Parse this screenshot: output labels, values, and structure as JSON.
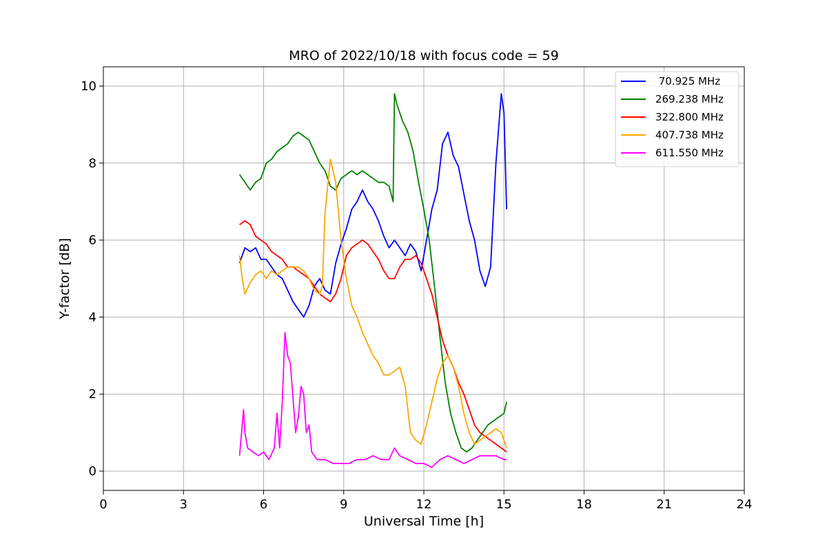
{
  "chart_data": {
    "type": "line",
    "title": "MRO of 2022/10/18 with focus code = 59",
    "xlabel": "Universal Time [h]",
    "ylabel": "Y-factor [dB]",
    "xlim": [
      0,
      24
    ],
    "ylim": [
      -0.5,
      10.5
    ],
    "xticks": [
      0,
      3,
      6,
      9,
      12,
      15,
      18,
      21,
      24
    ],
    "yticks": [
      0,
      2,
      4,
      6,
      8,
      10
    ],
    "grid": true,
    "legend_position": "top-right",
    "series": [
      {
        "name": " 70.925 MHz",
        "color": "#0000ff",
        "x": [
          5.1,
          5.2,
          5.3,
          5.5,
          5.7,
          5.9,
          6.1,
          6.3,
          6.5,
          6.7,
          6.9,
          7.1,
          7.3,
          7.5,
          7.7,
          7.9,
          8.1,
          8.3,
          8.5,
          8.7,
          8.9,
          9.1,
          9.3,
          9.5,
          9.7,
          9.9,
          10.1,
          10.3,
          10.5,
          10.7,
          10.9,
          11.1,
          11.3,
          11.5,
          11.7,
          11.9,
          12.1,
          12.3,
          12.5,
          12.7,
          12.9,
          13.1,
          13.3,
          13.5,
          13.7,
          13.9,
          14.1,
          14.3,
          14.5,
          14.7,
          14.9,
          15.0,
          15.1
        ],
        "y": [
          5.4,
          5.6,
          5.8,
          5.7,
          5.8,
          5.5,
          5.5,
          5.3,
          5.1,
          5.0,
          4.7,
          4.4,
          4.2,
          4.0,
          4.3,
          4.8,
          5.0,
          4.7,
          4.6,
          5.4,
          5.9,
          6.3,
          6.8,
          7.0,
          7.3,
          7.0,
          6.8,
          6.5,
          6.1,
          5.8,
          6.0,
          5.8,
          5.6,
          5.9,
          5.7,
          5.2,
          6.0,
          6.8,
          7.3,
          8.5,
          8.8,
          8.2,
          7.9,
          7.2,
          6.5,
          6.0,
          5.2,
          4.8,
          5.3,
          8.0,
          9.8,
          9.3,
          6.8
        ]
      },
      {
        "name": "269.238 MHz",
        "color": "#008000",
        "x": [
          5.1,
          5.3,
          5.5,
          5.7,
          5.9,
          6.1,
          6.3,
          6.5,
          6.7,
          6.9,
          7.1,
          7.3,
          7.5,
          7.7,
          7.9,
          8.1,
          8.3,
          8.5,
          8.7,
          8.9,
          9.1,
          9.3,
          9.5,
          9.7,
          9.9,
          10.1,
          10.3,
          10.5,
          10.7,
          10.85,
          10.9,
          11.0,
          11.2,
          11.4,
          11.6,
          11.8,
          12.0,
          12.2,
          12.4,
          12.6,
          12.8,
          13.0,
          13.2,
          13.4,
          13.6,
          13.8,
          14.0,
          14.2,
          14.4,
          14.6,
          14.8,
          15.0,
          15.1
        ],
        "y": [
          7.7,
          7.5,
          7.3,
          7.5,
          7.6,
          8.0,
          8.1,
          8.3,
          8.4,
          8.5,
          8.7,
          8.8,
          8.7,
          8.6,
          8.3,
          8.0,
          7.8,
          7.4,
          7.3,
          7.6,
          7.7,
          7.8,
          7.7,
          7.8,
          7.7,
          7.6,
          7.5,
          7.5,
          7.4,
          7.0,
          9.8,
          9.5,
          9.1,
          8.8,
          8.3,
          7.5,
          6.8,
          6.0,
          4.8,
          3.5,
          2.3,
          1.5,
          1.0,
          0.6,
          0.5,
          0.6,
          0.8,
          1.0,
          1.2,
          1.3,
          1.4,
          1.5,
          1.8
        ]
      },
      {
        "name": "322.800 MHz",
        "color": "#ff0000",
        "x": [
          5.1,
          5.3,
          5.5,
          5.7,
          5.9,
          6.1,
          6.3,
          6.5,
          6.7,
          6.9,
          7.1,
          7.3,
          7.5,
          7.7,
          7.9,
          8.1,
          8.3,
          8.5,
          8.7,
          8.9,
          9.1,
          9.3,
          9.5,
          9.7,
          9.9,
          10.1,
          10.3,
          10.5,
          10.7,
          10.9,
          11.1,
          11.3,
          11.5,
          11.7,
          11.9,
          12.1,
          12.3,
          12.5,
          12.7,
          12.9,
          13.1,
          13.3,
          13.5,
          13.7,
          13.9,
          14.1,
          14.3,
          14.5,
          14.7,
          14.9,
          15.1
        ],
        "y": [
          6.4,
          6.5,
          6.4,
          6.1,
          6.0,
          5.9,
          5.7,
          5.6,
          5.5,
          5.3,
          5.3,
          5.2,
          5.1,
          5.0,
          4.8,
          4.6,
          4.5,
          4.4,
          4.6,
          5.0,
          5.6,
          5.8,
          5.9,
          6.0,
          5.9,
          5.7,
          5.5,
          5.2,
          5.0,
          5.0,
          5.3,
          5.5,
          5.5,
          5.6,
          5.4,
          5.0,
          4.6,
          4.0,
          3.4,
          3.0,
          2.7,
          2.3,
          2.0,
          1.6,
          1.2,
          1.0,
          0.9,
          0.8,
          0.7,
          0.6,
          0.5
        ]
      },
      {
        "name": "407.738 MHz",
        "color": "#ffa500",
        "x": [
          5.1,
          5.2,
          5.3,
          5.5,
          5.7,
          5.9,
          6.1,
          6.3,
          6.5,
          6.7,
          6.9,
          7.1,
          7.3,
          7.5,
          7.7,
          7.9,
          8.1,
          8.2,
          8.3,
          8.5,
          8.7,
          8.9,
          9.1,
          9.3,
          9.5,
          9.7,
          9.9,
          10.1,
          10.3,
          10.5,
          10.7,
          10.9,
          11.1,
          11.3,
          11.5,
          11.7,
          11.9,
          12.1,
          12.3,
          12.5,
          12.7,
          12.9,
          13.1,
          13.3,
          13.5,
          13.7,
          13.9,
          14.1,
          14.3,
          14.5,
          14.7,
          14.9,
          15.1
        ],
        "y": [
          5.6,
          5.0,
          4.6,
          4.9,
          5.1,
          5.2,
          5.0,
          5.2,
          5.1,
          5.2,
          5.3,
          5.3,
          5.3,
          5.2,
          5.0,
          4.7,
          4.6,
          4.8,
          6.7,
          8.1,
          7.5,
          6.0,
          5.0,
          4.3,
          4.0,
          3.6,
          3.3,
          3.0,
          2.8,
          2.5,
          2.5,
          2.6,
          2.7,
          2.2,
          1.0,
          0.8,
          0.7,
          1.2,
          1.8,
          2.4,
          2.8,
          3.0,
          2.7,
          2.2,
          1.5,
          1.0,
          0.7,
          0.8,
          0.9,
          1.0,
          1.1,
          1.0,
          0.6
        ]
      },
      {
        "name": "611.550 MHz",
        "color": "#ff00ff",
        "x": [
          5.1,
          5.2,
          5.25,
          5.3,
          5.4,
          5.6,
          5.8,
          6.0,
          6.2,
          6.4,
          6.5,
          6.6,
          6.7,
          6.8,
          6.9,
          7.0,
          7.2,
          7.3,
          7.4,
          7.5,
          7.6,
          7.7,
          7.8,
          8.0,
          8.3,
          8.6,
          8.9,
          9.2,
          9.5,
          9.8,
          10.1,
          10.4,
          10.7,
          10.9,
          11.1,
          11.4,
          11.7,
          12.0,
          12.3,
          12.6,
          12.9,
          13.2,
          13.5,
          13.8,
          14.1,
          14.4,
          14.7,
          15.0,
          15.1
        ],
        "y": [
          0.4,
          1.2,
          1.6,
          1.0,
          0.6,
          0.5,
          0.4,
          0.5,
          0.3,
          0.6,
          1.5,
          0.6,
          1.8,
          3.6,
          3.0,
          2.8,
          1.0,
          1.4,
          2.2,
          2.0,
          1.0,
          1.2,
          0.5,
          0.3,
          0.3,
          0.2,
          0.2,
          0.2,
          0.3,
          0.3,
          0.4,
          0.3,
          0.3,
          0.6,
          0.4,
          0.3,
          0.2,
          0.2,
          0.1,
          0.3,
          0.4,
          0.3,
          0.2,
          0.3,
          0.4,
          0.4,
          0.4,
          0.3,
          0.3
        ]
      }
    ]
  }
}
